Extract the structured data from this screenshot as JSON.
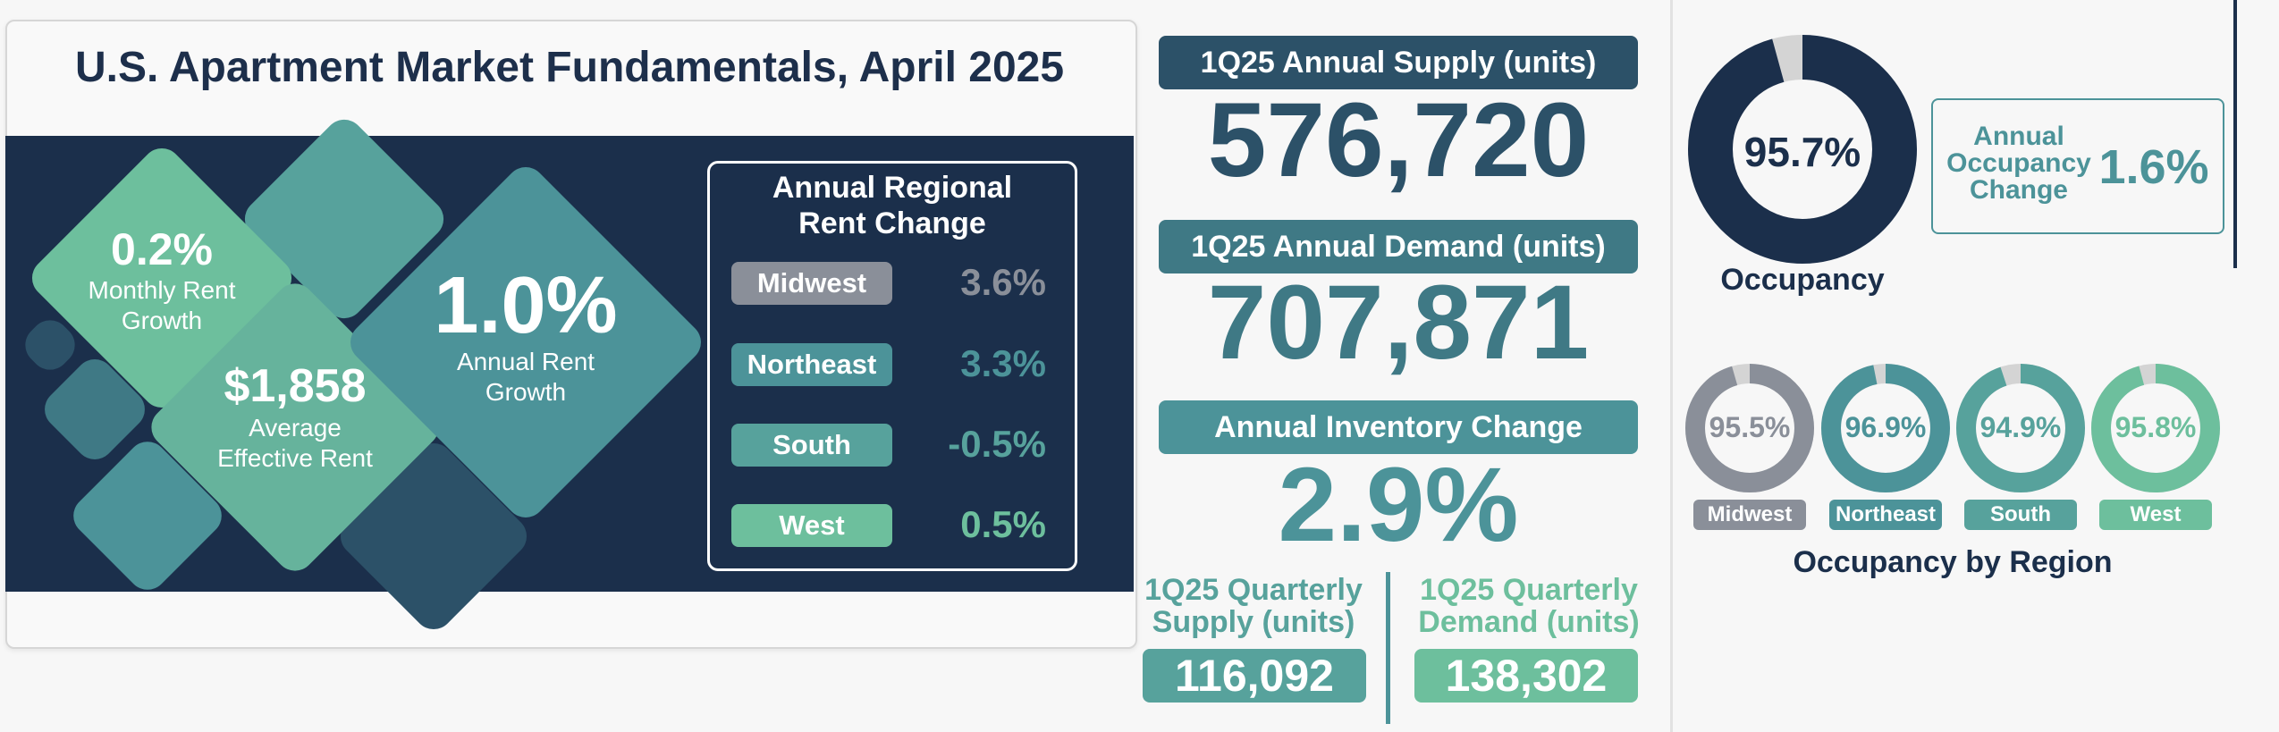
{
  "title": "U.S. Apartment Market Fundamentals, April 2025",
  "rent_kpis": {
    "monthly_growth": {
      "value": "0.2%",
      "label_1": "Monthly Rent",
      "label_2": "Growth"
    },
    "avg_rent": {
      "value": "$1,858",
      "label_1": "Average",
      "label_2": "Effective Rent"
    },
    "annual_growth": {
      "value": "1.0%",
      "label_1": "Annual Rent",
      "label_2": "Growth"
    }
  },
  "regional_rent": {
    "title_1": "Annual Regional",
    "title_2": "Rent Change",
    "rows": [
      {
        "region": "Midwest",
        "value": "3.6%",
        "color": "#8a8f99"
      },
      {
        "region": "Northeast",
        "value": "3.3%",
        "color": "#4c9399"
      },
      {
        "region": "South",
        "value": "-0.5%",
        "color": "#57a29c"
      },
      {
        "region": "West",
        "value": "0.5%",
        "color": "#6dbf9d"
      }
    ]
  },
  "supply": {
    "label": "1Q25 Annual Supply (units)",
    "value": "576,720",
    "color": "#2c5168"
  },
  "demand": {
    "label": "1Q25 Annual Demand (units)",
    "value": "707,871",
    "color": "#3f7985"
  },
  "inventory": {
    "label": "Annual Inventory Change",
    "value": "2.9%",
    "color": "#4c9399"
  },
  "quarterly": {
    "supply": {
      "label_1": "1Q25 Quarterly",
      "label_2": "Supply (units)",
      "value": "116,092",
      "color": "#57a29c"
    },
    "demand": {
      "label_1": "1Q25 Quarterly",
      "label_2": "Demand (units)",
      "value": "138,302",
      "color": "#6dbf9d"
    }
  },
  "occupancy": {
    "value": "95.7%",
    "fraction": 0.957,
    "label": "Occupancy",
    "change_label_1": "Annual",
    "change_label_2": "Occupancy",
    "change_label_3": "Change",
    "change_value": "1.6%"
  },
  "occupancy_by_region": {
    "title": "Occupancy by Region",
    "regions": [
      {
        "name": "Midwest",
        "value": "95.5%",
        "fraction": 0.955,
        "color": "#8a8f99"
      },
      {
        "name": "Northeast",
        "value": "96.9%",
        "fraction": 0.969,
        "color": "#4c9399"
      },
      {
        "name": "South",
        "value": "94.9%",
        "fraction": 0.949,
        "color": "#57a29c"
      },
      {
        "name": "West",
        "value": "95.8%",
        "fraction": 0.958,
        "color": "#6dbf9d"
      }
    ]
  }
}
